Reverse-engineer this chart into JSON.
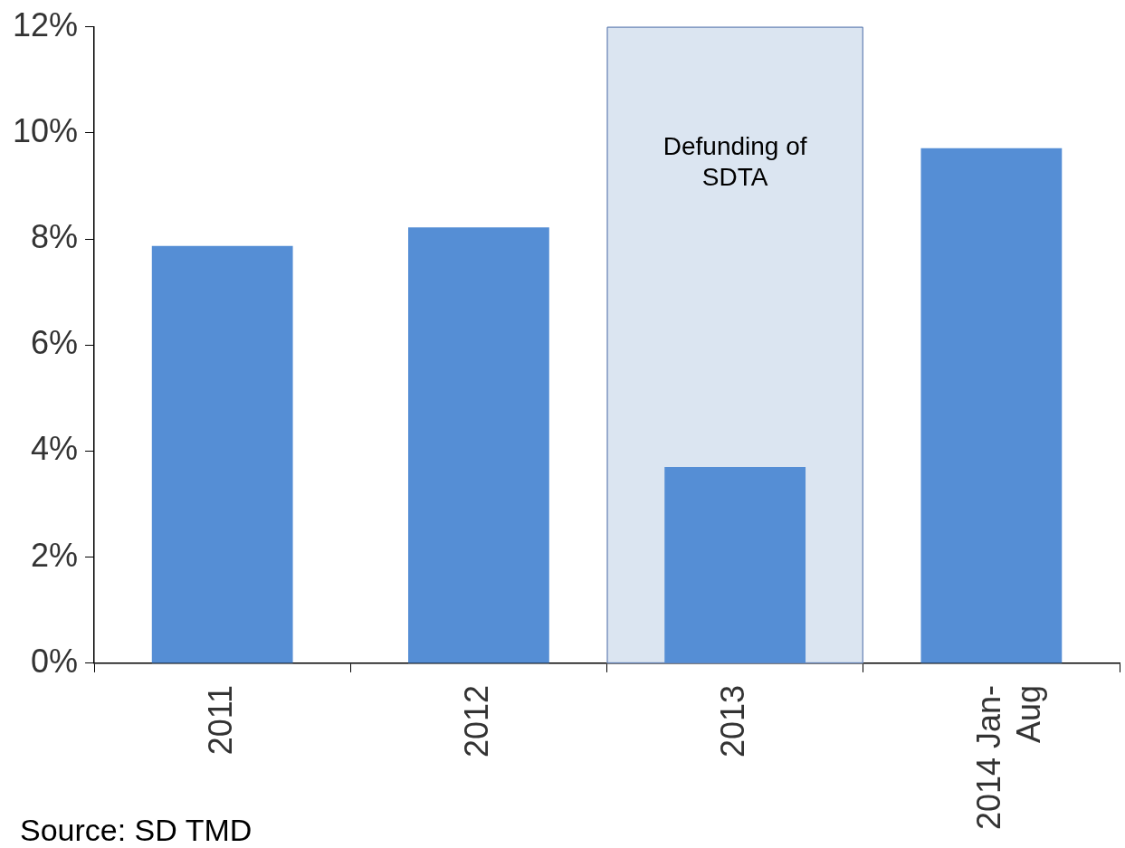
{
  "chart_data": {
    "type": "bar",
    "categories": [
      "2011",
      "2012",
      "2013",
      "2014 Jan-Aug"
    ],
    "values": [
      7.87,
      8.22,
      3.7,
      9.71
    ],
    "color": "#558ed5",
    "ylim": [
      0,
      12
    ],
    "yticks": [
      {
        "value": 0,
        "label": "0%"
      },
      {
        "value": 2,
        "label": "2%"
      },
      {
        "value": 4,
        "label": "4%"
      },
      {
        "value": 6,
        "label": "6%"
      },
      {
        "value": 8,
        "label": "8%"
      },
      {
        "value": 10,
        "label": "10%"
      },
      {
        "value": 12,
        "label": "12%"
      }
    ],
    "grid": false,
    "legend": false,
    "bands": [
      {
        "axis": "x",
        "from": "2013",
        "to": "2013",
        "label": "Defunding of SDTA",
        "color": "#dbe5f1"
      }
    ],
    "annotations": [
      "Source: SD TMD"
    ]
  }
}
